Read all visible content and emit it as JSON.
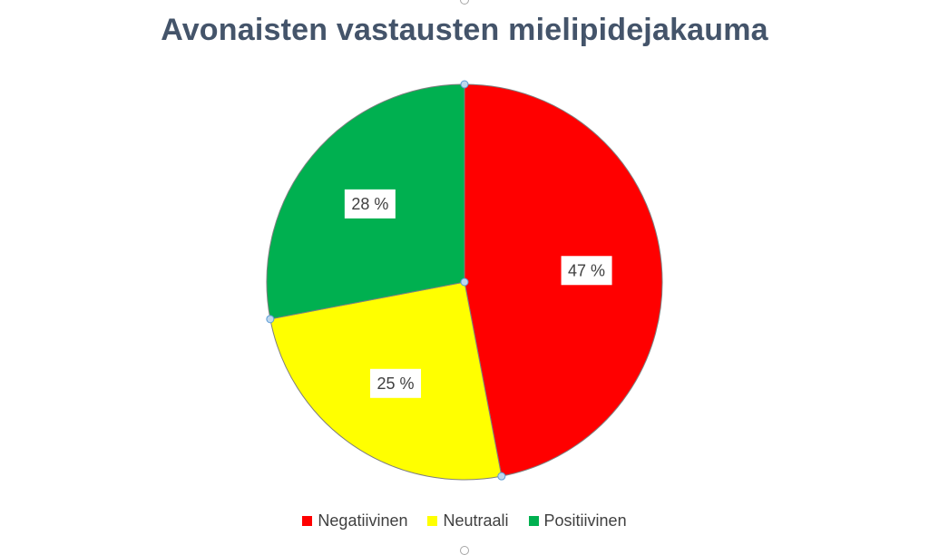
{
  "chart_data": {
    "type": "pie",
    "title": "Avonaisten vastausten mielipidejakauma",
    "categories": [
      "Negatiivinen",
      "Neutraali",
      "Positiivinen"
    ],
    "values": [
      47,
      25,
      28
    ],
    "value_labels": [
      "47 %",
      "25 %",
      "28 %"
    ],
    "colors": [
      "#ff0000",
      "#ffff00",
      "#00b050"
    ],
    "start_angle": "12 o'clock",
    "direction": "clockwise",
    "legend_position": "bottom"
  }
}
